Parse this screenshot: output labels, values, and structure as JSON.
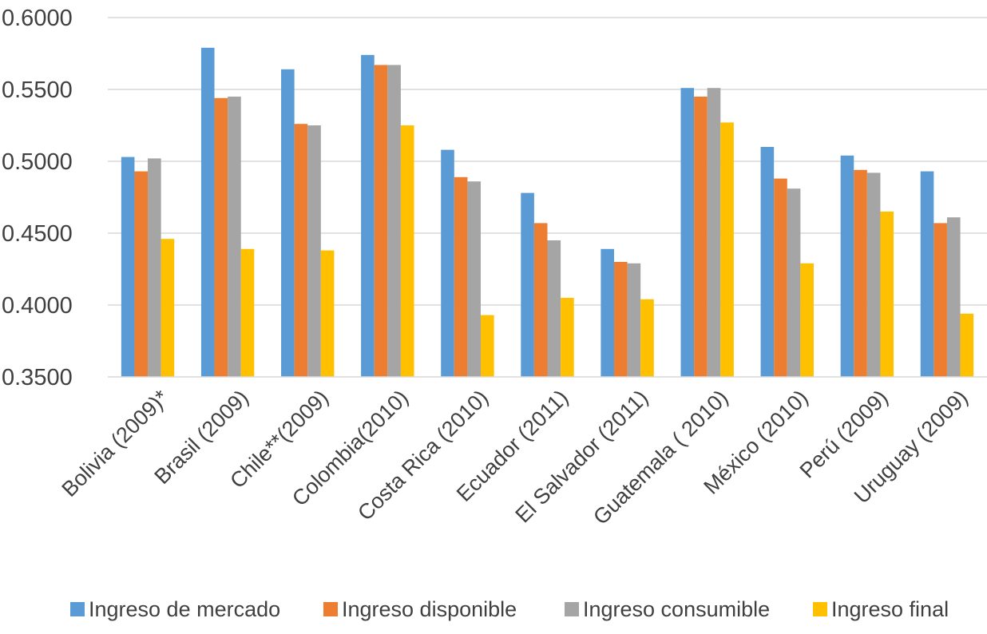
{
  "chart_data": {
    "type": "bar",
    "title": "",
    "xlabel": "",
    "ylabel": "",
    "ylim": [
      0.35,
      0.6
    ],
    "yticks": [
      "0.3500",
      "0.4000",
      "0.4500",
      "0.5000",
      "0.5500",
      "0.6000"
    ],
    "ytick_values": [
      0.35,
      0.4,
      0.45,
      0.5,
      0.55,
      0.6
    ],
    "grid": true,
    "legend_position": "bottom",
    "categories": [
      "Bolivia (2009)*",
      "Brasil (2009)",
      "Chile**(2009)",
      "Colombia(2010)",
      "Costa Rica (2010)",
      "Ecuador (2011)",
      "El Salvador (2011)",
      "Guatemala ( 2010)",
      "México (2010)",
      "Perú (2009)",
      "Uruguay (2009)"
    ],
    "series": [
      {
        "name": "Ingreso de mercado",
        "color": "#5B9BD5",
        "values": [
          0.503,
          0.579,
          0.564,
          0.574,
          0.508,
          0.478,
          0.439,
          0.551,
          0.51,
          0.504,
          0.493
        ]
      },
      {
        "name": "Ingreso disponible",
        "color": "#ED7D31",
        "values": [
          0.493,
          0.544,
          0.526,
          0.567,
          0.489,
          0.457,
          0.43,
          0.545,
          0.488,
          0.494,
          0.457
        ]
      },
      {
        "name": "Ingreso consumible",
        "color": "#A5A5A5",
        "values": [
          0.502,
          0.545,
          0.525,
          0.567,
          0.486,
          0.445,
          0.429,
          0.551,
          0.481,
          0.492,
          0.461
        ]
      },
      {
        "name": "Ingreso final",
        "color": "#FFC000",
        "values": [
          0.446,
          0.439,
          0.438,
          0.525,
          0.393,
          0.405,
          0.404,
          0.527,
          0.429,
          0.465,
          0.394
        ]
      }
    ]
  }
}
